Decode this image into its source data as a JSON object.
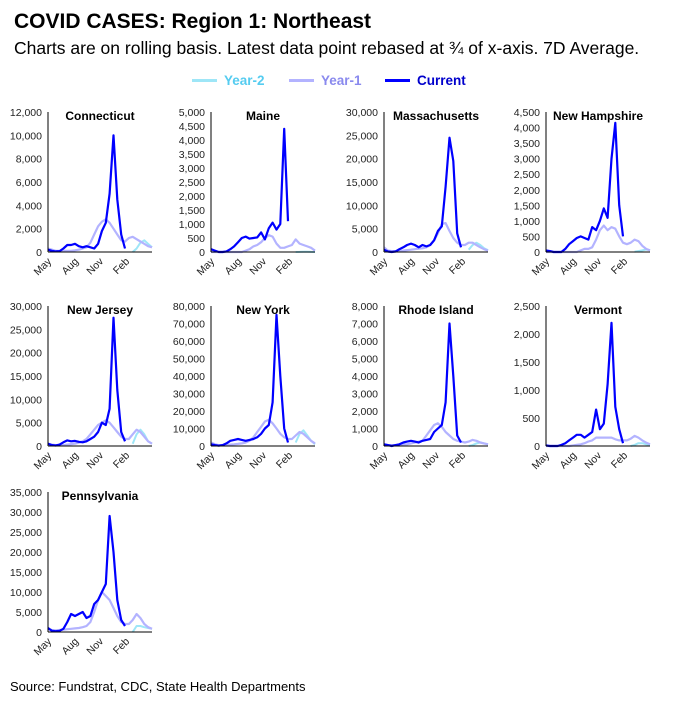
{
  "header": {
    "title": "COVID CASES: Region 1: Northeast",
    "subtitle": "Charts are on rolling basis. Latest data point rebased at ¾ of x-axis. 7D Average."
  },
  "legend": [
    {
      "label": "Year-2",
      "color": "#9ee6f7",
      "text_color": "#55ccf0"
    },
    {
      "label": "Year-1",
      "color": "#b3b3ff",
      "text_color": "#8a8aee"
    },
    {
      "label": "Current",
      "color": "#0000ff",
      "text_color": "#0000cc"
    }
  ],
  "source": "Source: Fundstrat, CDC, State Health Departments",
  "chart_data": [
    {
      "type": "line",
      "title": "Connecticut",
      "x_ticks": [
        "May",
        "Aug",
        "Nov",
        "Feb"
      ],
      "ylim": [
        0,
        12000
      ],
      "y_ticks": [
        "0",
        "2,000",
        "4,000",
        "6,000",
        "8,000",
        "10,000",
        "12,000"
      ],
      "series": [
        {
          "name": "Year-2",
          "values": [
            null,
            null,
            null,
            null,
            null,
            null,
            null,
            null,
            null,
            null,
            null,
            null,
            null,
            null,
            null,
            null,
            null,
            null,
            null,
            null,
            null,
            null,
            0,
            300,
            800,
            1000,
            700,
            400
          ]
        },
        {
          "name": "Year-1",
          "values": [
            300,
            200,
            100,
            100,
            100,
            100,
            100,
            150,
            200,
            300,
            400,
            800,
            1500,
            2200,
            2600,
            2800,
            2500,
            2000,
            1500,
            1000,
            900,
            1200,
            1300,
            1100,
            900,
            700,
            500,
            400
          ]
        },
        {
          "name": "Current",
          "values": [
            200,
            100,
            50,
            80,
            300,
            600,
            600,
            700,
            500,
            400,
            500,
            400,
            300,
            700,
            1800,
            2500,
            5000,
            10000,
            4500,
            1500,
            300
          ]
        }
      ]
    },
    {
      "type": "line",
      "title": "Maine",
      "x_ticks": [
        "May",
        "Aug",
        "Nov",
        "Feb"
      ],
      "ylim": [
        0,
        5000
      ],
      "y_ticks": [
        "0",
        "500",
        "1,000",
        "1,500",
        "2,000",
        "2,500",
        "3,000",
        "3,500",
        "4,000",
        "4,500",
        "5,000"
      ],
      "series": [
        {
          "name": "Year-2",
          "values": [
            null,
            null,
            null,
            null,
            null,
            null,
            null,
            null,
            null,
            null,
            null,
            null,
            null,
            null,
            null,
            null,
            null,
            null,
            null,
            null,
            null,
            null,
            0,
            5,
            10,
            10,
            5,
            0
          ]
        },
        {
          "name": "Year-1",
          "values": [
            0,
            0,
            0,
            0,
            0,
            0,
            0,
            0,
            0,
            50,
            100,
            200,
            250,
            350,
            500,
            600,
            550,
            300,
            150,
            150,
            200,
            250,
            450,
            300,
            250,
            200,
            150,
            50
          ]
        },
        {
          "name": "Current",
          "values": [
            100,
            50,
            0,
            0,
            20,
            100,
            200,
            350,
            500,
            550,
            480,
            500,
            520,
            700,
            450,
            850,
            1050,
            800,
            1000,
            4400,
            1100
          ]
        }
      ]
    },
    {
      "type": "line",
      "title": "Massachusetts",
      "x_ticks": [
        "May",
        "Aug",
        "Nov",
        "Feb"
      ],
      "ylim": [
        0,
        30000
      ],
      "y_ticks": [
        "0",
        "5,000",
        "10,000",
        "15,000",
        "20,000",
        "25,000",
        "30,000"
      ],
      "series": [
        {
          "name": "Year-2",
          "values": [
            null,
            null,
            null,
            null,
            null,
            null,
            null,
            null,
            null,
            null,
            null,
            null,
            null,
            null,
            null,
            null,
            null,
            null,
            null,
            null,
            null,
            null,
            500,
            1500,
            2000,
            1500,
            800,
            400
          ]
        },
        {
          "name": "Year-1",
          "values": [
            1000,
            300,
            200,
            200,
            200,
            300,
            400,
            500,
            600,
            700,
            800,
            1000,
            1500,
            2500,
            4000,
            6000,
            6200,
            4500,
            3000,
            2000,
            1500,
            1500,
            2000,
            2000,
            1500,
            1000,
            600,
            300
          ]
        },
        {
          "name": "Current",
          "values": [
            500,
            100,
            0,
            100,
            600,
            1000,
            1500,
            1800,
            1500,
            1000,
            1500,
            1200,
            1500,
            2500,
            4500,
            5500,
            14000,
            24500,
            19500,
            4000,
            1000
          ]
        }
      ]
    },
    {
      "type": "line",
      "title": "New Hampshire",
      "x_ticks": [
        "May",
        "Aug",
        "Nov",
        "Feb"
      ],
      "ylim": [
        0,
        4500
      ],
      "y_ticks": [
        "0",
        "500",
        "1,000",
        "1,500",
        "2,000",
        "2,500",
        "3,000",
        "3,500",
        "4,000",
        "4,500"
      ],
      "series": [
        {
          "name": "Year-2",
          "values": [
            null,
            null,
            null,
            null,
            null,
            null,
            null,
            null,
            null,
            null,
            null,
            null,
            null,
            null,
            null,
            null,
            null,
            null,
            null,
            null,
            null,
            null,
            null,
            10,
            30,
            50,
            80,
            60
          ]
        },
        {
          "name": "Year-1",
          "values": [
            0,
            0,
            0,
            0,
            0,
            0,
            0,
            0,
            0,
            50,
            100,
            100,
            150,
            400,
            700,
            850,
            700,
            800,
            750,
            500,
            300,
            250,
            300,
            400,
            350,
            200,
            100,
            50
          ]
        },
        {
          "name": "Current",
          "values": [
            50,
            30,
            0,
            0,
            0,
            100,
            250,
            350,
            450,
            500,
            450,
            400,
            800,
            700,
            1000,
            1400,
            1100,
            3000,
            4150,
            1500,
            500
          ]
        }
      ]
    },
    {
      "type": "line",
      "title": "New Jersey",
      "x_ticks": [
        "May",
        "Aug",
        "Nov",
        "Feb"
      ],
      "ylim": [
        0,
        30000
      ],
      "y_ticks": [
        "0",
        "5,000",
        "10,000",
        "15,000",
        "20,000",
        "25,000",
        "30,000"
      ],
      "series": [
        {
          "name": "Year-2",
          "values": [
            null,
            null,
            null,
            null,
            null,
            null,
            null,
            null,
            null,
            null,
            null,
            null,
            null,
            null,
            null,
            null,
            null,
            null,
            null,
            null,
            null,
            null,
            500,
            2500,
            3500,
            2500,
            1000,
            500
          ]
        },
        {
          "name": "Year-1",
          "values": [
            500,
            300,
            200,
            200,
            200,
            300,
            400,
            500,
            700,
            1000,
            1500,
            2500,
            3500,
            4500,
            5000,
            5500,
            5000,
            4000,
            3000,
            2000,
            1500,
            1500,
            2500,
            3500,
            3000,
            2000,
            1000,
            500
          ]
        },
        {
          "name": "Current",
          "values": [
            500,
            200,
            100,
            300,
            800,
            1200,
            1000,
            1100,
            900,
            800,
            1000,
            1500,
            2000,
            3000,
            5000,
            4500,
            8000,
            27500,
            12000,
            3000,
            1000
          ]
        }
      ]
    },
    {
      "type": "line",
      "title": "New York",
      "x_ticks": [
        "May",
        "Aug",
        "Nov",
        "Feb"
      ],
      "ylim": [
        0,
        80000
      ],
      "y_ticks": [
        "0",
        "10,000",
        "20,000",
        "30,000",
        "40,000",
        "50,000",
        "60,000",
        "70,000",
        "80,000"
      ],
      "series": [
        {
          "name": "Year-2",
          "values": [
            null,
            null,
            null,
            null,
            null,
            null,
            null,
            null,
            null,
            null,
            null,
            null,
            null,
            null,
            null,
            null,
            null,
            null,
            null,
            null,
            null,
            null,
            2000,
            7000,
            9000,
            6000,
            3000,
            1000
          ]
        },
        {
          "name": "Year-1",
          "values": [
            2000,
            1000,
            500,
            500,
            700,
            800,
            1000,
            1200,
            1500,
            2000,
            3000,
            5000,
            8000,
            11000,
            14000,
            15000,
            13000,
            10000,
            7000,
            5000,
            4000,
            4000,
            6000,
            8000,
            7000,
            5000,
            3000,
            1500
          ]
        },
        {
          "name": "Current",
          "values": [
            1000,
            500,
            200,
            500,
            1500,
            3000,
            3500,
            4000,
            3500,
            3000,
            3500,
            4000,
            5000,
            7000,
            10000,
            12000,
            25000,
            75000,
            40000,
            10000,
            2000
          ]
        }
      ]
    },
    {
      "type": "line",
      "title": "Rhode Island",
      "x_ticks": [
        "May",
        "Aug",
        "Nov",
        "Feb"
      ],
      "ylim": [
        0,
        8000
      ],
      "y_ticks": [
        "0",
        "1,000",
        "2,000",
        "3,000",
        "4,000",
        "5,000",
        "6,000",
        "7,000",
        "8,000"
      ],
      "series": [
        {
          "name": "Year-2",
          "values": [
            null,
            null,
            null,
            null,
            null,
            null,
            null,
            null,
            null,
            null,
            null,
            null,
            null,
            null,
            null,
            null,
            null,
            null,
            null,
            null,
            null,
            null,
            0,
            50,
            150,
            200,
            150,
            100
          ]
        },
        {
          "name": "Year-1",
          "values": [
            100,
            50,
            50,
            50,
            50,
            100,
            100,
            150,
            200,
            250,
            300,
            600,
            900,
            1200,
            1300,
            1100,
            800,
            600,
            400,
            300,
            250,
            200,
            250,
            350,
            300,
            200,
            150,
            100
          ]
        },
        {
          "name": "Current",
          "values": [
            100,
            50,
            0,
            50,
            100,
            200,
            250,
            300,
            250,
            200,
            300,
            350,
            400,
            800,
            1000,
            1200,
            2500,
            7000,
            4000,
            600,
            200
          ]
        }
      ]
    },
    {
      "type": "line",
      "title": "Vermont",
      "x_ticks": [
        "May",
        "Aug",
        "Nov",
        "Feb"
      ],
      "ylim": [
        0,
        2500
      ],
      "y_ticks": [
        "0",
        "500",
        "1,000",
        "1,500",
        "2,000",
        "2,500"
      ],
      "series": [
        {
          "name": "Year-2",
          "values": [
            null,
            null,
            null,
            null,
            null,
            null,
            null,
            null,
            null,
            null,
            null,
            null,
            null,
            null,
            null,
            null,
            null,
            null,
            null,
            null,
            null,
            null,
            0,
            20,
            50,
            50,
            30,
            20
          ]
        },
        {
          "name": "Year-1",
          "values": [
            0,
            0,
            0,
            0,
            0,
            0,
            0,
            10,
            20,
            30,
            50,
            80,
            100,
            150,
            150,
            150,
            150,
            150,
            120,
            100,
            100,
            100,
            130,
            180,
            150,
            100,
            60,
            30
          ]
        },
        {
          "name": "Current",
          "values": [
            10,
            0,
            0,
            0,
            20,
            50,
            100,
            150,
            200,
            200,
            150,
            200,
            250,
            650,
            300,
            400,
            1100,
            2200,
            700,
            300,
            50
          ]
        }
      ]
    },
    {
      "type": "line",
      "title": "Pennsylvania",
      "x_ticks": [
        "May",
        "Aug",
        "Nov",
        "Feb"
      ],
      "ylim": [
        0,
        35000
      ],
      "y_ticks": [
        "0",
        "5,000",
        "10,000",
        "15,000",
        "20,000",
        "25,000",
        "30,000",
        "35,000"
      ],
      "series": [
        {
          "name": "Year-2",
          "values": [
            null,
            null,
            null,
            null,
            null,
            null,
            null,
            null,
            null,
            null,
            null,
            null,
            null,
            null,
            null,
            null,
            null,
            null,
            null,
            null,
            null,
            null,
            0,
            1500,
            1500,
            1200,
            1000,
            800
          ]
        },
        {
          "name": "Year-1",
          "values": [
            700,
            500,
            400,
            500,
            600,
            700,
            800,
            900,
            1000,
            1200,
            1500,
            2500,
            5000,
            8000,
            10000,
            9000,
            8000,
            6000,
            4000,
            2500,
            2000,
            2000,
            3000,
            4500,
            3500,
            2000,
            1200,
            800
          ]
        },
        {
          "name": "Current",
          "values": [
            1000,
            300,
            200,
            300,
            800,
            2500,
            4500,
            4000,
            4500,
            5000,
            3500,
            4000,
            7000,
            8000,
            10000,
            12000,
            29000,
            20000,
            8000,
            3000,
            1500
          ]
        }
      ]
    }
  ]
}
